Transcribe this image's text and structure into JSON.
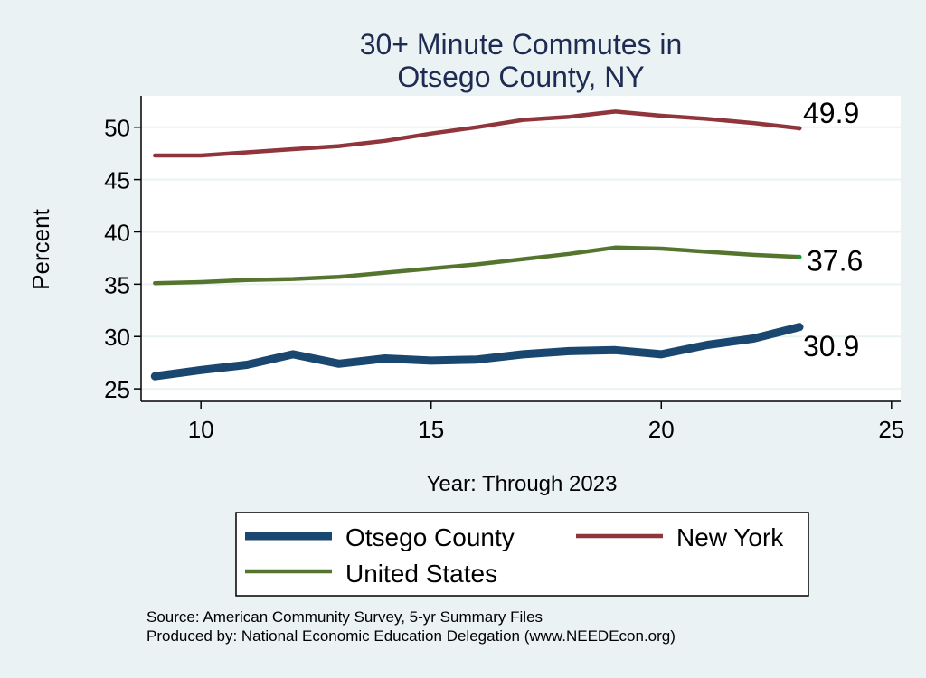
{
  "chart_data": {
    "type": "line",
    "title_lines": [
      "30+ Minute Commutes in",
      "Otsego County, NY"
    ],
    "xlabel": "Year: Through 2023",
    "ylabel": "Percent",
    "xlim": [
      8.7,
      25.2
    ],
    "ylim": [
      23.8,
      53
    ],
    "xticks": [
      10,
      15,
      20,
      25
    ],
    "yticks": [
      25,
      30,
      35,
      40,
      45,
      50
    ],
    "grid": true,
    "series": [
      {
        "key": "otsego",
        "name": "Otsego County",
        "color": "#1a476f",
        "x": [
          9,
          10,
          11,
          12,
          13,
          14,
          15,
          16,
          17,
          18,
          19,
          20,
          21,
          22,
          23
        ],
        "values": [
          26.2,
          26.8,
          27.3,
          28.3,
          27.4,
          27.9,
          27.7,
          27.8,
          28.3,
          28.6,
          28.7,
          28.3,
          29.2,
          29.8,
          30.9
        ],
        "end_label": "30.9"
      },
      {
        "key": "newyork",
        "name": "New York",
        "color": "#90353b",
        "x": [
          9,
          10,
          11,
          12,
          13,
          14,
          15,
          16,
          17,
          18,
          19,
          20,
          21,
          22,
          23
        ],
        "values": [
          47.3,
          47.3,
          47.6,
          47.9,
          48.2,
          48.7,
          49.4,
          50.0,
          50.7,
          51.0,
          51.5,
          51.1,
          50.8,
          50.4,
          49.9
        ],
        "end_label": "49.9"
      },
      {
        "key": "unitedstates",
        "name": "United States",
        "color": "#55752f",
        "x": [
          9,
          10,
          11,
          12,
          13,
          14,
          15,
          16,
          17,
          18,
          19,
          20,
          21,
          22,
          23
        ],
        "values": [
          35.1,
          35.2,
          35.4,
          35.5,
          35.7,
          36.1,
          36.5,
          36.9,
          37.4,
          37.9,
          38.5,
          38.4,
          38.1,
          37.8,
          37.6
        ],
        "end_label": "37.6"
      }
    ],
    "legend": {
      "position": "bottom",
      "entries": [
        "Otsego County",
        "New York",
        "United States"
      ]
    },
    "notes": [
      "Source: American Community Survey, 5-yr Summary Files",
      "Produced by: National Economic Education Delegation (www.NEEDEcon.org)"
    ]
  }
}
